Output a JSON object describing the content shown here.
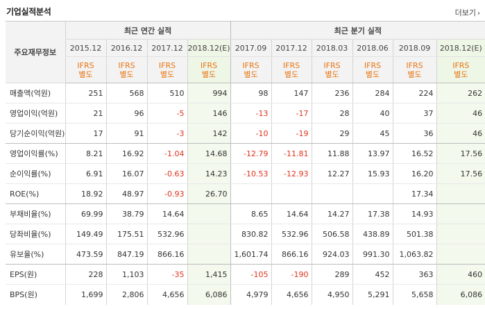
{
  "header": {
    "title": "기업실적분석",
    "more_label": "더보기",
    "more_icon": "chevron-right-icon"
  },
  "colors": {
    "negative": "#e0321b",
    "accounting": "#e8740f",
    "estimate_bg": "#f3f9ec"
  },
  "table": {
    "row_header_label": "주요재무정보",
    "groups": [
      {
        "label": "최근 연간 실적"
      },
      {
        "label": "최근 분기 실적"
      }
    ],
    "periods": [
      "2015.12",
      "2016.12",
      "2017.12",
      "2018.12(E)",
      "2017.09",
      "2017.12",
      "2018.03",
      "2018.06",
      "2018.09",
      "2018.12(E)"
    ],
    "accounting": [
      [
        "IFRS",
        "별도"
      ],
      [
        "IFRS",
        "별도"
      ],
      [
        "IFRS",
        "별도"
      ],
      [
        "IFRS",
        "별도"
      ],
      [
        "IFRS",
        "별도"
      ],
      [
        "IFRS",
        "별도"
      ],
      [
        "IFRS",
        "별도"
      ],
      [
        "IFRS",
        "별도"
      ],
      [
        "IFRS",
        "별도"
      ],
      [
        "IFRS",
        "별도"
      ]
    ],
    "rows": [
      {
        "label": "매출액(억원)",
        "values": [
          "251",
          "568",
          "510",
          "994",
          "98",
          "147",
          "236",
          "284",
          "224",
          "262"
        ]
      },
      {
        "label": "영업이익(억원)",
        "values": [
          "21",
          "96",
          "-5",
          "146",
          "-13",
          "-17",
          "28",
          "40",
          "37",
          "46"
        ]
      },
      {
        "label": "당기순이익(억원)",
        "values": [
          "17",
          "91",
          "-3",
          "142",
          "-10",
          "-19",
          "29",
          "45",
          "36",
          "46"
        ]
      },
      {
        "label": "영업이익률(%)",
        "values": [
          "8.21",
          "16.92",
          "-1.04",
          "14.68",
          "-12.79",
          "-11.81",
          "11.88",
          "13.97",
          "16.52",
          "17.56"
        ]
      },
      {
        "label": "순이익률(%)",
        "values": [
          "6.91",
          "16.07",
          "-0.63",
          "14.23",
          "-10.53",
          "-12.93",
          "12.27",
          "15.93",
          "16.20",
          "17.56"
        ]
      },
      {
        "label": "ROE(%)",
        "values": [
          "18.92",
          "48.97",
          "-0.93",
          "26.70",
          "",
          "",
          "",
          "",
          "17.34",
          ""
        ]
      },
      {
        "label": "부채비율(%)",
        "values": [
          "69.99",
          "38.79",
          "14.64",
          "",
          "8.65",
          "14.64",
          "14.27",
          "17.38",
          "14.93",
          ""
        ]
      },
      {
        "label": "당좌비율(%)",
        "values": [
          "149.49",
          "175.51",
          "532.96",
          "",
          "830.82",
          "532.96",
          "506.58",
          "438.89",
          "501.38",
          ""
        ]
      },
      {
        "label": "유보율(%)",
        "values": [
          "473.59",
          "847.19",
          "866.16",
          "",
          "1,601.74",
          "866.16",
          "924.03",
          "991.30",
          "1,063.82",
          ""
        ]
      },
      {
        "label": "EPS(원)",
        "values": [
          "228",
          "1,103",
          "-35",
          "1,415",
          "-105",
          "-190",
          "289",
          "452",
          "363",
          "460"
        ]
      },
      {
        "label": "BPS(원)",
        "values": [
          "1,699",
          "2,806",
          "4,656",
          "6,086",
          "4,979",
          "4,656",
          "4,950",
          "5,291",
          "5,658",
          "6,086"
        ]
      }
    ]
  }
}
